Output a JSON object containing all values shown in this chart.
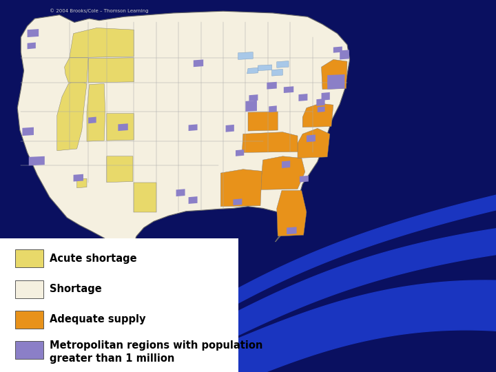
{
  "background_color": "#0a1060",
  "map_bg": "#f5f0e0",
  "legend_items": [
    {
      "label": "Acute shortage",
      "color": "#e8d96a"
    },
    {
      "label": "Shortage",
      "color": "#f5f0e0"
    },
    {
      "label": "Adequate supply",
      "color": "#e8921a"
    },
    {
      "label": "Metropolitan regions with population\ngreater than 1 million",
      "color": "#8b7fc7"
    }
  ],
  "swoosh_color": "#1a35c0",
  "watermark": "© 2004 Brooks/Cole – Thomson Learning"
}
